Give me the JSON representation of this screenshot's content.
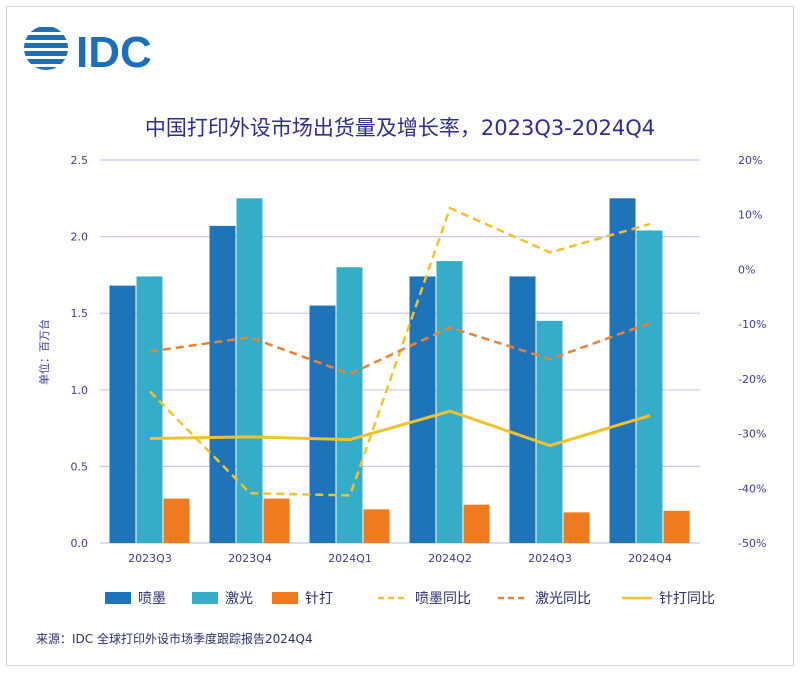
{
  "logo_text": "IDC",
  "source": "来源：IDC 全球打印外设市场季度跟踪报告2024Q4",
  "chart_data": {
    "type": "bar+line",
    "title": "中国打印外设市场出货量及增长率，2023Q3-2024Q4",
    "ylabel": "单位：百万台",
    "categories": [
      "2023Q3",
      "2023Q4",
      "2024Q1",
      "2024Q2",
      "2024Q3",
      "2024Q4"
    ],
    "ylim": [
      0,
      2.5
    ],
    "yticks": [
      "0.0",
      "0.5",
      "1.0",
      "1.5",
      "2.0",
      "2.5"
    ],
    "y2lim": [
      -50,
      20
    ],
    "y2ticks": [
      "-50%",
      "-40%",
      "-30%",
      "-20%",
      "-10%",
      "0%",
      "10%",
      "20%"
    ],
    "grid": true,
    "legend_position": "bottom",
    "bars": [
      {
        "name": "喷墨",
        "color": "#1f73b8",
        "values": [
          1.68,
          2.07,
          1.55,
          1.74,
          1.74,
          2.25
        ]
      },
      {
        "name": "激光",
        "color": "#36adc8",
        "values": [
          1.74,
          2.25,
          1.8,
          1.84,
          1.45,
          2.04
        ]
      },
      {
        "name": "针打",
        "color": "#f07a20",
        "values": [
          0.29,
          0.29,
          0.22,
          0.25,
          0.2,
          0.21
        ]
      }
    ],
    "lines": [
      {
        "name": "喷墨同比",
        "color": "#f2c12e",
        "dash": true,
        "values": [
          -22.3,
          -40.9,
          -41.3,
          11.2,
          3.1,
          8.3
        ]
      },
      {
        "name": "激光同比",
        "color": "#ea8138",
        "dash": true,
        "values": [
          -15.0,
          -12.4,
          -19.1,
          -10.6,
          -16.4,
          -9.8
        ]
      },
      {
        "name": "针打同比",
        "color": "#f2c12e",
        "dash": false,
        "values": [
          -30.9,
          -30.6,
          -31.1,
          -25.9,
          -32.2,
          -26.7
        ]
      }
    ]
  }
}
